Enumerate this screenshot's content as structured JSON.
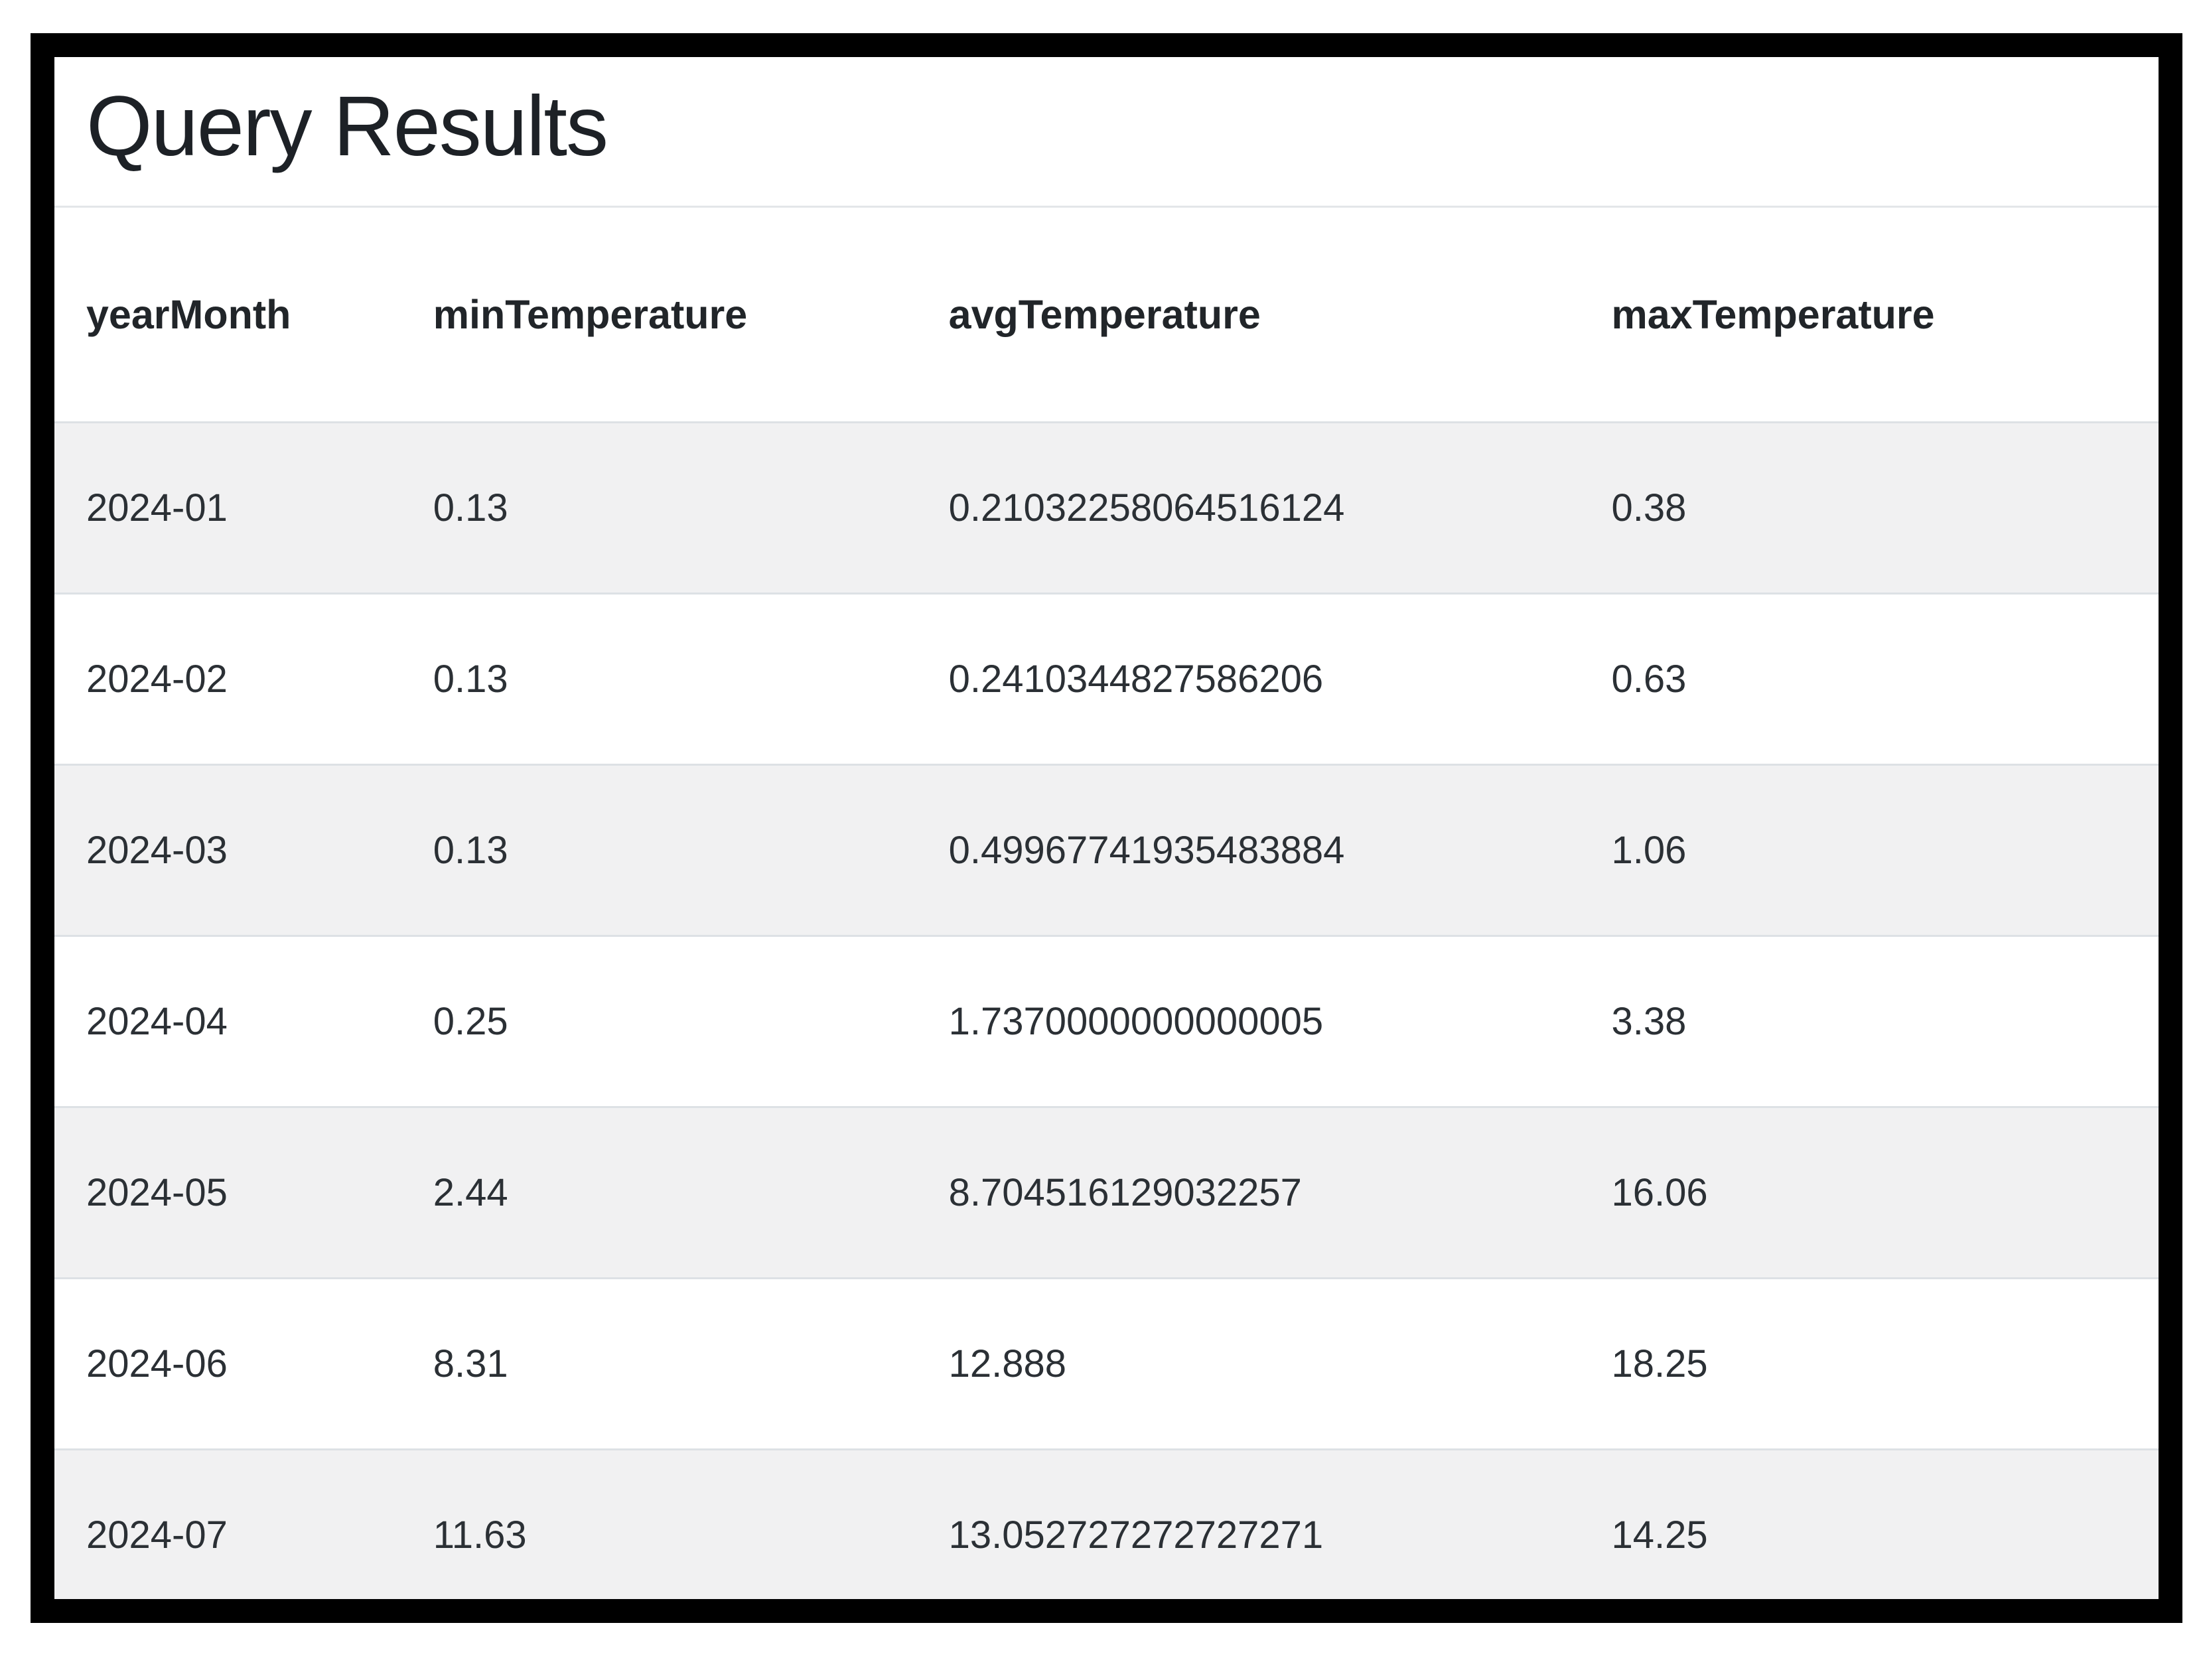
{
  "title": "Query Results",
  "table": {
    "columns": [
      "yearMonth",
      "minTemperature",
      "avgTemperature",
      "maxTemperature"
    ],
    "rows": [
      [
        "2024-01",
        "0.13",
        "0.21032258064516124",
        "0.38"
      ],
      [
        "2024-02",
        "0.13",
        "0.2410344827586206",
        "0.63"
      ],
      [
        "2024-03",
        "0.13",
        "0.49967741935483884",
        "1.06"
      ],
      [
        "2024-04",
        "0.25",
        "1.7370000000000005",
        "3.38"
      ],
      [
        "2024-05",
        "2.44",
        "8.704516129032257",
        "16.06"
      ],
      [
        "2024-06",
        "8.31",
        "12.888",
        "18.25"
      ],
      [
        "2024-07",
        "11.63",
        "13.052727272727271",
        "14.25"
      ]
    ]
  },
  "colors": {
    "frame_border": "#000000",
    "stripe": "#f1f1f2",
    "row_divider": "#dde1e5",
    "text": "#212529"
  }
}
